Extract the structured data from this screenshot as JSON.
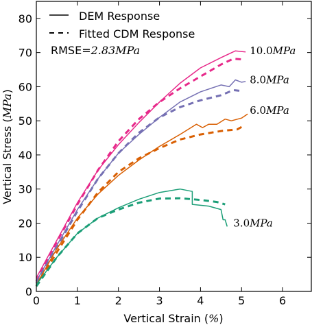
{
  "chart_data": {
    "type": "line",
    "xlabel": "Vertical Strain (%)",
    "ylabel": "Vertical Stress (MPa)",
    "xlim": [
      0,
      6.7
    ],
    "ylim": [
      0,
      85
    ],
    "xticks": [
      "0",
      "1",
      "2",
      "3",
      "4",
      "5",
      "6"
    ],
    "yticks": [
      "0",
      "10",
      "20",
      "30",
      "40",
      "50",
      "60",
      "70",
      "80"
    ],
    "grid": false,
    "legend_position": "top-left",
    "legend": {
      "solid": "DEM Response",
      "dashed": "Fitted CDM Response"
    },
    "rmse": {
      "prefix": "RMSE=",
      "value": "2.83",
      "unit": "MPa"
    },
    "series": [
      {
        "name": "DEM Response",
        "confining": "10.0",
        "unit": "MPa",
        "color": "#e7298a",
        "style": "solid",
        "points": [
          [
            0,
            4
          ],
          [
            0.5,
            15
          ],
          [
            1,
            26
          ],
          [
            1.5,
            35.5
          ],
          [
            2,
            43
          ],
          [
            2.5,
            49.5
          ],
          [
            3,
            55.5
          ],
          [
            3.5,
            61
          ],
          [
            4,
            65.5
          ],
          [
            4.5,
            68.5
          ],
          [
            4.85,
            70.5
          ],
          [
            5.1,
            70.2
          ]
        ]
      },
      {
        "name": "Fitted CDM Response",
        "confining": "10.0",
        "unit": "MPa",
        "color": "#e7298a",
        "style": "dashed",
        "points": [
          [
            0,
            3
          ],
          [
            0.5,
            14.5
          ],
          [
            1,
            25.5
          ],
          [
            1.5,
            35.5
          ],
          [
            2,
            44
          ],
          [
            2.5,
            50.5
          ],
          [
            3,
            55.5
          ],
          [
            3.5,
            59.5
          ],
          [
            4,
            63
          ],
          [
            4.5,
            66.5
          ],
          [
            4.8,
            68.2
          ],
          [
            5,
            68
          ]
        ]
      },
      {
        "name": "DEM Response",
        "confining": "8.0",
        "unit": "MPa",
        "color": "#7570b3",
        "style": "solid",
        "points": [
          [
            0,
            3
          ],
          [
            0.5,
            13.5
          ],
          [
            1,
            24
          ],
          [
            1.5,
            33
          ],
          [
            2,
            40.5
          ],
          [
            2.5,
            46
          ],
          [
            3,
            51
          ],
          [
            3.5,
            55.5
          ],
          [
            4,
            58.5
          ],
          [
            4.5,
            60.5
          ],
          [
            4.7,
            60
          ],
          [
            4.85,
            62
          ],
          [
            5,
            61.3
          ],
          [
            5.1,
            61.5
          ]
        ]
      },
      {
        "name": "Fitted CDM Response",
        "confining": "8.0",
        "unit": "MPa",
        "color": "#7570b3",
        "style": "dashed",
        "points": [
          [
            0,
            2.5
          ],
          [
            0.5,
            13
          ],
          [
            1,
            23.5
          ],
          [
            1.5,
            33
          ],
          [
            2,
            40.5
          ],
          [
            2.5,
            46.5
          ],
          [
            3,
            51
          ],
          [
            3.5,
            54
          ],
          [
            4,
            56
          ],
          [
            4.5,
            57.5
          ],
          [
            4.8,
            59
          ],
          [
            4.95,
            58.8
          ]
        ]
      },
      {
        "name": "DEM Response",
        "confining": "6.0",
        "unit": "MPa",
        "color": "#d95f02",
        "style": "solid",
        "points": [
          [
            0,
            2
          ],
          [
            0.5,
            12.5
          ],
          [
            1,
            21.5
          ],
          [
            1.5,
            28.5
          ],
          [
            2,
            34
          ],
          [
            2.5,
            38.5
          ],
          [
            3,
            42.5
          ],
          [
            3.5,
            46
          ],
          [
            3.9,
            49
          ],
          [
            4.05,
            48
          ],
          [
            4.2,
            49
          ],
          [
            4.4,
            49
          ],
          [
            4.6,
            50.5
          ],
          [
            4.75,
            50
          ],
          [
            5,
            50.8
          ],
          [
            5.15,
            52
          ]
        ]
      },
      {
        "name": "Fitted CDM Response",
        "confining": "6.0",
        "unit": "MPa",
        "color": "#d95f02",
        "style": "dashed",
        "points": [
          [
            0,
            1.5
          ],
          [
            0.5,
            11.5
          ],
          [
            1,
            21
          ],
          [
            1.5,
            29
          ],
          [
            2,
            35
          ],
          [
            2.5,
            39
          ],
          [
            3,
            42
          ],
          [
            3.5,
            44.5
          ],
          [
            4,
            46
          ],
          [
            4.5,
            47
          ],
          [
            4.9,
            47.5
          ],
          [
            5.05,
            48.5
          ]
        ]
      },
      {
        "name": "DEM Response",
        "confining": "3.0",
        "unit": "MPa",
        "color": "#1b9e77",
        "style": "solid",
        "points": [
          [
            0,
            2
          ],
          [
            0.5,
            10
          ],
          [
            1,
            17
          ],
          [
            1.5,
            21.5
          ],
          [
            2,
            24.5
          ],
          [
            2.5,
            27
          ],
          [
            3,
            29
          ],
          [
            3.5,
            30
          ],
          [
            3.8,
            29.3
          ],
          [
            3.8,
            25.5
          ],
          [
            4.2,
            25
          ],
          [
            4.5,
            24
          ],
          [
            4.55,
            21
          ],
          [
            4.6,
            21
          ],
          [
            4.65,
            19
          ]
        ]
      },
      {
        "name": "Fitted CDM Response",
        "confining": "3.0",
        "unit": "MPa",
        "color": "#1b9e77",
        "style": "dashed",
        "points": [
          [
            0,
            1.5
          ],
          [
            0.5,
            10
          ],
          [
            1,
            17
          ],
          [
            1.5,
            21.5
          ],
          [
            2,
            24
          ],
          [
            2.5,
            26
          ],
          [
            3,
            27.2
          ],
          [
            3.5,
            27.3
          ],
          [
            4,
            26.8
          ],
          [
            4.4,
            26.2
          ],
          [
            4.6,
            25.5
          ]
        ]
      }
    ],
    "annotations": [
      {
        "value": "10.0",
        "unit": "MPa",
        "x": 5.2,
        "y": 70.5
      },
      {
        "value": "8.0",
        "unit": "MPa",
        "x": 5.2,
        "y": 62
      },
      {
        "value": "6.0",
        "unit": "MPa",
        "x": 5.2,
        "y": 53
      },
      {
        "value": "3.0",
        "unit": "MPa",
        "x": 4.8,
        "y": 20
      }
    ]
  }
}
